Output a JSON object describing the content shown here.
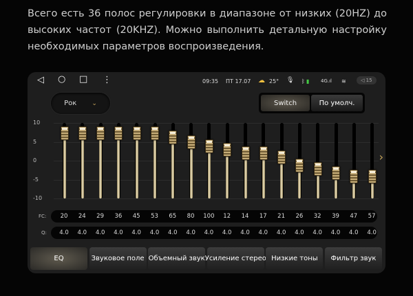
{
  "intro_text": "Всего есть 36 полос регулировки в диапазоне от низких (20HZ) до высоких частот (20KHZ). Можно выполнить детальную настройку необходимых параметров воспроизведения.",
  "status": {
    "time": "09:35",
    "date": "ПТ 17.07",
    "temperature": "25°",
    "volume": "15",
    "icons": [
      "weather-partly-cloudy-icon",
      "microphone-icon",
      "bluetooth-icon",
      "battery-icon",
      "signal-4g-icon",
      "wifi-icon",
      "volume-icon"
    ]
  },
  "nav_icons": [
    "back-icon",
    "home-icon",
    "recents-icon",
    "more-icon"
  ],
  "preset": {
    "value": "Рок"
  },
  "buttons": {
    "switch": "Switch",
    "default": "По умолч."
  },
  "eq": {
    "y_ticks": [
      "10",
      "5",
      "0",
      "-5",
      "-10"
    ],
    "range": [
      -10,
      10
    ],
    "gains": [
      7.2,
      7.2,
      7.2,
      7.2,
      7.2,
      7.2,
      6.2,
      5,
      3.9,
      2.9,
      2,
      2,
      0.9,
      -1.2,
      -2.1,
      -3.2,
      -4.2,
      -4.2
    ],
    "page": 1,
    "pages": 2
  },
  "fc_label": "FC:",
  "fc": [
    "20",
    "24",
    "29",
    "36",
    "45",
    "53",
    "65",
    "80",
    "100",
    "12",
    "14",
    "17",
    "21",
    "26",
    "32",
    "39",
    "47",
    "57"
  ],
  "q_label": "Q:",
  "q": [
    "4.0",
    "4.0",
    "4.0",
    "4.0",
    "4.0",
    "4.0",
    "4.0",
    "4.0",
    "4.0",
    "4.0",
    "4.0",
    "4.0",
    "4.0",
    "4.0",
    "4.0",
    "4.0",
    "4.0",
    "4.0"
  ],
  "tabs": [
    "EQ",
    "Звуковое поле",
    "Объемный звук",
    "Усиление стерео",
    "Низкие тоны",
    "Фильтр звук"
  ],
  "active_tab": 0,
  "colors": {
    "accent": "#c9a85c",
    "background": "#1e1e1e"
  }
}
